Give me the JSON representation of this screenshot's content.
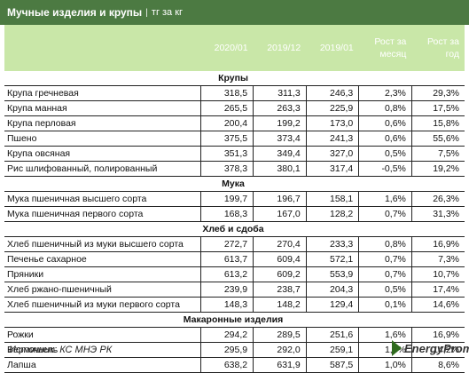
{
  "header": {
    "title": "Мучные изделия и крупы",
    "separator": "|",
    "unit": "тг за кг"
  },
  "chart_data": {
    "type": "table",
    "columns": [
      "",
      "2020/01",
      "2019/12",
      "2019/01",
      "Рост за месяц",
      "Рост за год"
    ],
    "groups": [
      {
        "name": "Крупы",
        "rows": [
          [
            "Крупа гречневая",
            "318,5",
            "311,3",
            "246,3",
            "2,3%",
            "29,3%"
          ],
          [
            "Крупа манная",
            "265,5",
            "263,3",
            "225,9",
            "0,8%",
            "17,5%"
          ],
          [
            "Крупа перловая",
            "200,4",
            "199,2",
            "173,0",
            "0,6%",
            "15,8%"
          ],
          [
            "Пшено",
            "375,5",
            "373,4",
            "241,3",
            "0,6%",
            "55,6%"
          ],
          [
            "Крупа овсяная",
            "351,3",
            "349,4",
            "327,0",
            "0,5%",
            "7,5%"
          ],
          [
            "Рис шлифованный, полированный",
            "378,3",
            "380,1",
            "317,4",
            "-0,5%",
            "19,2%"
          ]
        ]
      },
      {
        "name": "Мука",
        "rows": [
          [
            "Мука пшеничная высшего сорта",
            "199,7",
            "196,7",
            "158,1",
            "1,6%",
            "26,3%"
          ],
          [
            "Мука пшеничная первого сорта",
            "168,3",
            "167,0",
            "128,2",
            "0,7%",
            "31,3%"
          ]
        ]
      },
      {
        "name": "Хлеб и сдоба",
        "rows": [
          [
            "Хлеб пшеничный из муки высшего сорта",
            "272,7",
            "270,4",
            "233,3",
            "0,8%",
            "16,9%"
          ],
          [
            "Печенье сахарное",
            "613,7",
            "609,4",
            "572,1",
            "0,7%",
            "7,3%"
          ],
          [
            "Пряники",
            "613,2",
            "609,2",
            "553,9",
            "0,7%",
            "10,7%"
          ],
          [
            "Хлеб ржано-пшеничный",
            "239,9",
            "238,7",
            "204,3",
            "0,5%",
            "17,4%"
          ],
          [
            "Хлеб пшеничный из муки первого сорта",
            "148,3",
            "148,2",
            "129,4",
            "0,1%",
            "14,6%"
          ]
        ]
      },
      {
        "name": "Макаронные изделия",
        "rows": [
          [
            "Рожки",
            "294,2",
            "289,5",
            "251,6",
            "1,6%",
            "16,9%"
          ],
          [
            "Вермишель",
            "295,9",
            "292,0",
            "259,1",
            "1,3%",
            "14,2%"
          ],
          [
            "Лапша",
            "638,2",
            "631,9",
            "587,5",
            "1,0%",
            "8,6%"
          ]
        ]
      }
    ]
  },
  "footer": {
    "source": "Источник: КС МНЭ РК",
    "brand": "EnergyProm"
  },
  "colors": {
    "title_bg": "#4c7a42",
    "header_bg": "#c9e7a8",
    "header_text": "#ffffff",
    "logo": "#2f6b1e"
  }
}
